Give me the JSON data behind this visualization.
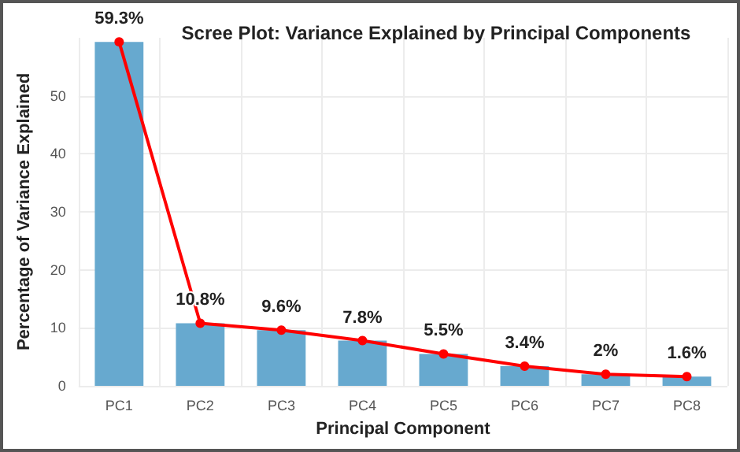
{
  "chart_data": {
    "type": "bar",
    "title": "Scree Plot: Variance Explained by Principal Components",
    "xlabel": "Principal Component",
    "ylabel": "Percentage of Variance Explained",
    "categories": [
      "PC1",
      "PC2",
      "PC3",
      "PC4",
      "PC5",
      "PC6",
      "PC7",
      "PC8"
    ],
    "series": [
      {
        "color": "#67a9cf",
        "values": [
          59.3,
          10.8,
          9.6,
          7.8,
          5.5,
          3.4,
          2,
          1.6
        ]
      },
      {
        "type": "line",
        "color": "#ff0000",
        "values": [
          59.3,
          10.8,
          9.6,
          7.8,
          5.5,
          3.4,
          2,
          1.6
        ],
        "value_labels": [
          "59.3%",
          "10.8%",
          "9.6%",
          "7.8%",
          "5.5%",
          "3.4%",
          "2%",
          "1.6%"
        ],
        "marker": "circle",
        "line_style": "solid"
      }
    ],
    "ylim": [
      0,
      60
    ],
    "yticks": [
      0,
      10,
      20,
      30,
      40,
      50
    ],
    "grid": true
  }
}
